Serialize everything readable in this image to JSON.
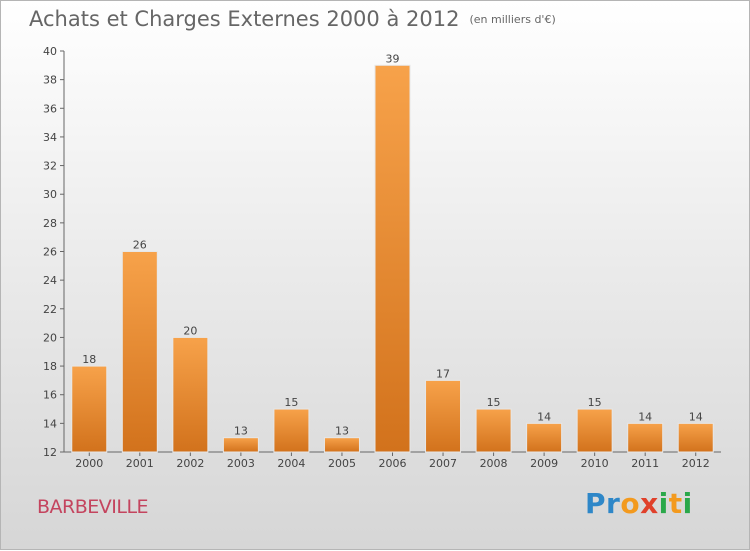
{
  "header": {
    "title": "Achats et Charges Externes 2000 à 2012",
    "unit": "(en milliers d'€)"
  },
  "footer": {
    "location": "BARBEVILLE",
    "logo": "Proxiti"
  },
  "colors": {
    "bar_light": "#f7a24a",
    "bar_dark": "#d2721c",
    "axis": "#666666",
    "title": "#666666",
    "location": "#c4445e"
  },
  "chart_data": {
    "type": "bar",
    "title": "Achats et Charges Externes 2000 à 2012",
    "subtitle": "(en milliers d'€)",
    "categories": [
      "2000",
      "2001",
      "2002",
      "2003",
      "2004",
      "2005",
      "2006",
      "2007",
      "2008",
      "2009",
      "2010",
      "2011",
      "2012"
    ],
    "values": [
      18,
      26,
      20,
      13,
      15,
      13,
      39,
      17,
      15,
      14,
      15,
      14,
      14
    ],
    "ylim": [
      12,
      40
    ],
    "yticks": [
      12,
      14,
      16,
      18,
      20,
      22,
      24,
      26,
      28,
      30,
      32,
      34,
      36,
      38,
      40
    ],
    "grid": false,
    "legend": "none",
    "data_labels": true
  }
}
